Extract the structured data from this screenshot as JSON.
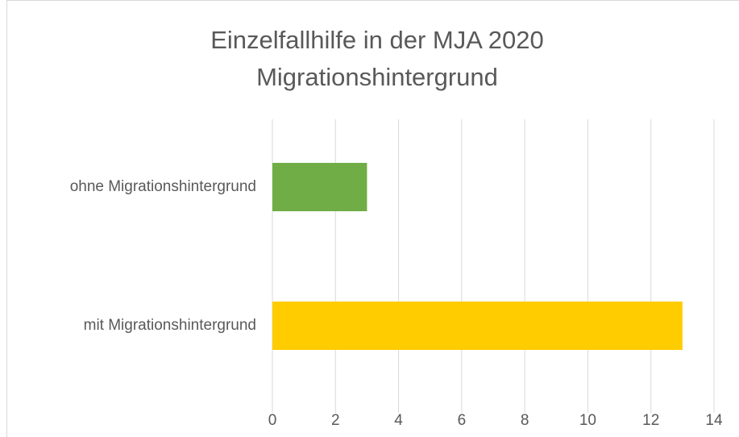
{
  "chart_data": {
    "type": "barh",
    "title": [
      "Einzelfallhilfe in der MJA 2020",
      "Migrationshintergrund"
    ],
    "categories": [
      "ohne Migrationshintergrund",
      "mit Migrationshintergrund"
    ],
    "values": [
      3,
      13
    ],
    "colors": [
      "#70ad47",
      "#ffcc00"
    ],
    "xlim": [
      0,
      14
    ],
    "xticks": [
      0,
      2,
      4,
      6,
      8,
      10,
      12,
      14
    ],
    "grid": true
  }
}
